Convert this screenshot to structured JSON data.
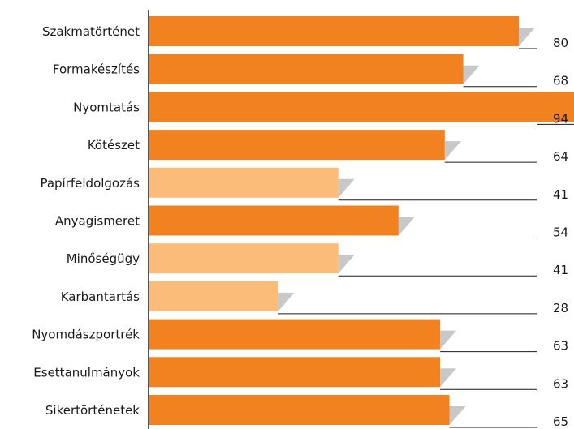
{
  "chart_data": {
    "type": "bar",
    "orientation": "horizontal",
    "categories": [
      "Szakmatörténet",
      "Formakészítés",
      "Nyomtatás",
      "Kötészet",
      "Papírfeldolgozás",
      "Anyagismeret",
      "Minőségügy",
      "Karbantartás",
      "Nyomdászportrék",
      "Esettanulmányok",
      "Sikertörténetek"
    ],
    "values": [
      80,
      68,
      94,
      64,
      41,
      54,
      41,
      28,
      63,
      63,
      65
    ],
    "highlight": [
      false,
      false,
      false,
      false,
      true,
      false,
      true,
      true,
      false,
      false,
      false
    ],
    "xlim": [
      0,
      100
    ],
    "title": "",
    "xlabel": "",
    "ylabel": "",
    "colors": {
      "bar": "#f28220",
      "bar_light": "#fbbb79",
      "shadow": "#c8c8c8",
      "axis": "#1a1a1a"
    }
  }
}
